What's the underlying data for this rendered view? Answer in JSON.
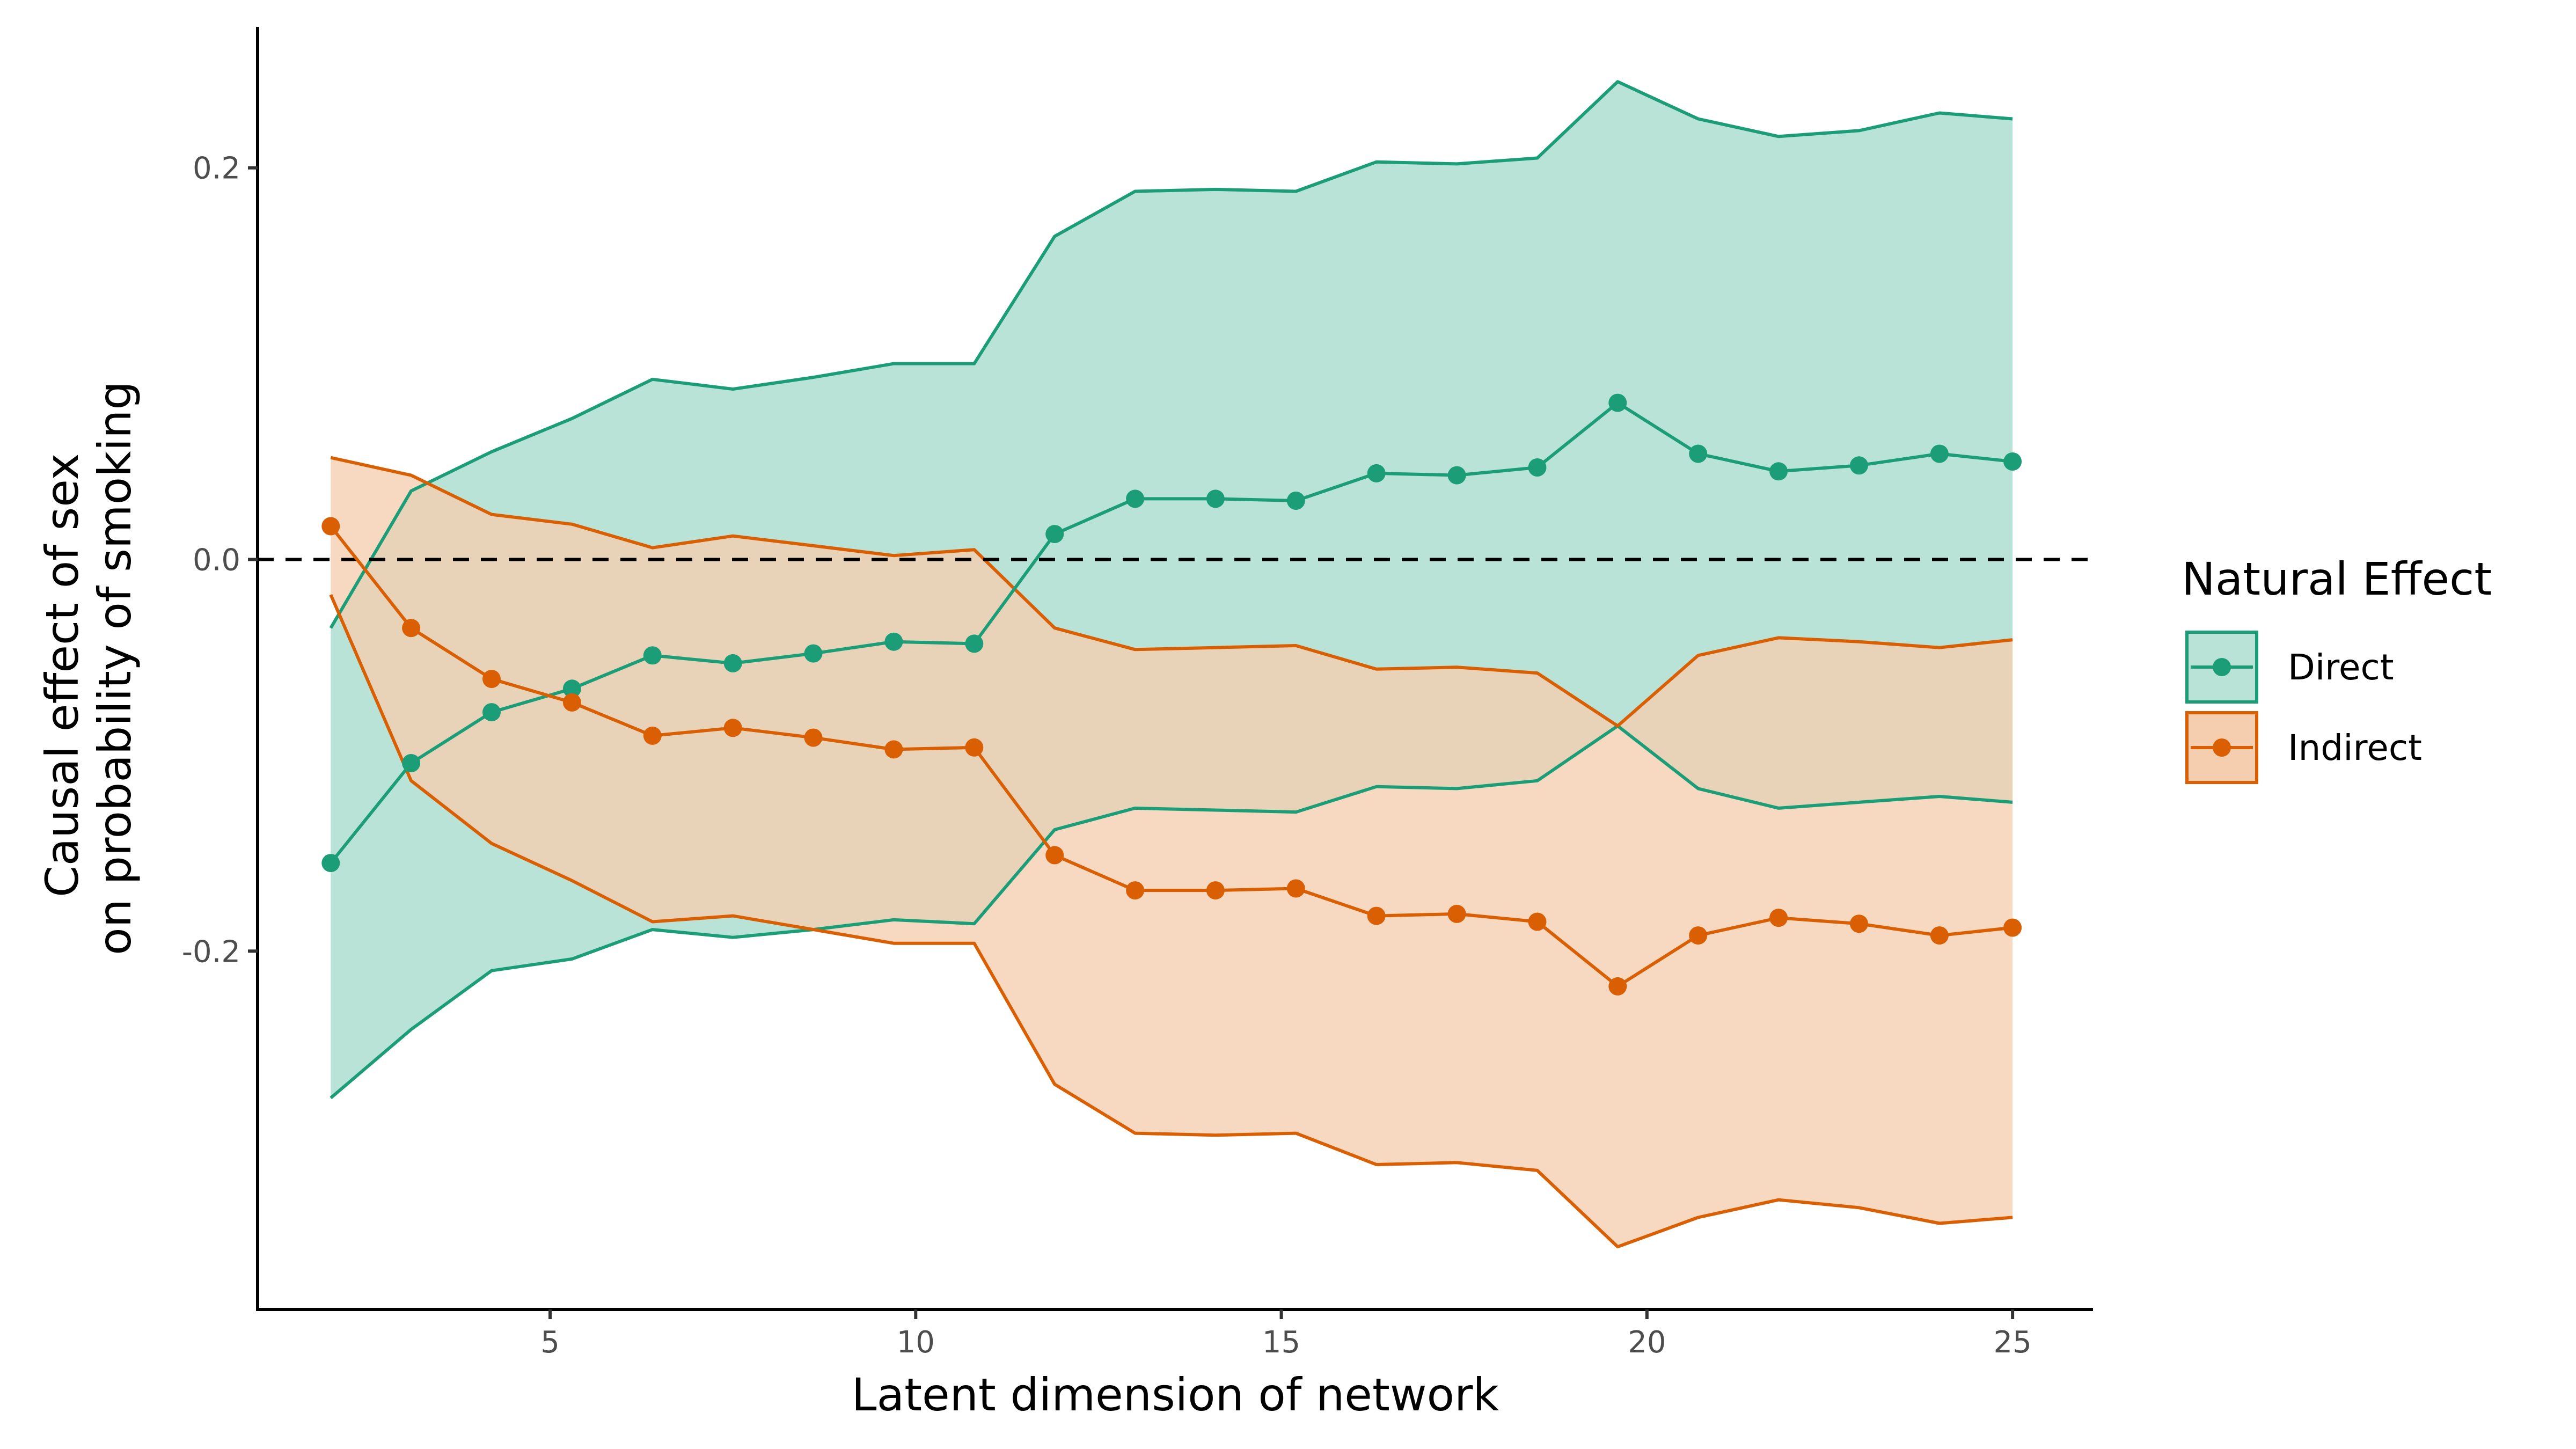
{
  "chart_data": {
    "type": "line",
    "xlabel": "Latent dimension of network",
    "ylabel_lines": [
      "Causal effect of sex",
      "on probability of smoking"
    ],
    "xlim": [
      1,
      26.1
    ],
    "ylim": [
      -0.383,
      0.272
    ],
    "xticks": [
      5,
      10,
      15,
      20,
      25
    ],
    "yticks": [
      -0.2,
      0.0,
      0.2
    ],
    "ytick_labels": [
      "-0.2",
      "0.0",
      "0.2"
    ],
    "reference_line": {
      "y": 0,
      "style": "dashed"
    },
    "grid": false,
    "x": [
      2,
      3.1,
      4.2,
      5.3,
      6.4,
      7.5,
      8.6,
      9.7,
      10.8,
      11.9,
      13,
      14.1,
      15.2,
      16.3,
      17.4,
      18.5,
      19.6,
      20.7,
      21.8,
      22.9,
      24,
      25
    ],
    "legend": {
      "title": "Natural Effect",
      "position": "right"
    },
    "series": [
      {
        "name": "Direct",
        "color": "#1b9e77",
        "fill": "#b9e3d7",
        "values": [
          -0.155,
          -0.104,
          -0.078,
          -0.066,
          -0.049,
          -0.053,
          -0.048,
          -0.042,
          -0.043,
          0.013,
          0.031,
          0.031,
          0.03,
          0.044,
          0.043,
          0.047,
          0.08,
          0.054,
          0.045,
          0.048,
          0.054,
          0.05
        ],
        "lower": [
          -0.275,
          -0.24,
          -0.21,
          -0.204,
          -0.189,
          -0.193,
          -0.189,
          -0.184,
          -0.186,
          -0.138,
          -0.127,
          -0.128,
          -0.129,
          -0.116,
          -0.117,
          -0.113,
          -0.085,
          -0.117,
          -0.127,
          -0.124,
          -0.121,
          -0.124
        ],
        "upper": [
          -0.035,
          0.035,
          0.055,
          0.072,
          0.092,
          0.087,
          0.093,
          0.1,
          0.1,
          0.165,
          0.188,
          0.189,
          0.188,
          0.203,
          0.202,
          0.205,
          0.244,
          0.225,
          0.216,
          0.219,
          0.228,
          0.225
        ]
      },
      {
        "name": "Indirect",
        "color": "#d95f02",
        "fill": "#f5ceb0",
        "values": [
          0.017,
          -0.035,
          -0.061,
          -0.073,
          -0.09,
          -0.086,
          -0.091,
          -0.097,
          -0.096,
          -0.151,
          -0.169,
          -0.169,
          -0.168,
          -0.182,
          -0.181,
          -0.185,
          -0.218,
          -0.192,
          -0.183,
          -0.186,
          -0.192,
          -0.188
        ],
        "lower": [
          -0.018,
          -0.113,
          -0.145,
          -0.164,
          -0.185,
          -0.182,
          -0.189,
          -0.196,
          -0.196,
          -0.268,
          -0.293,
          -0.294,
          -0.293,
          -0.309,
          -0.308,
          -0.312,
          -0.351,
          -0.336,
          -0.327,
          -0.331,
          -0.339,
          -0.336
        ],
        "upper": [
          0.052,
          0.043,
          0.023,
          0.018,
          0.006,
          0.012,
          0.007,
          0.002,
          0.005,
          -0.035,
          -0.046,
          -0.045,
          -0.044,
          -0.056,
          -0.055,
          -0.058,
          -0.085,
          -0.049,
          -0.04,
          -0.042,
          -0.045,
          -0.041
        ]
      }
    ]
  }
}
